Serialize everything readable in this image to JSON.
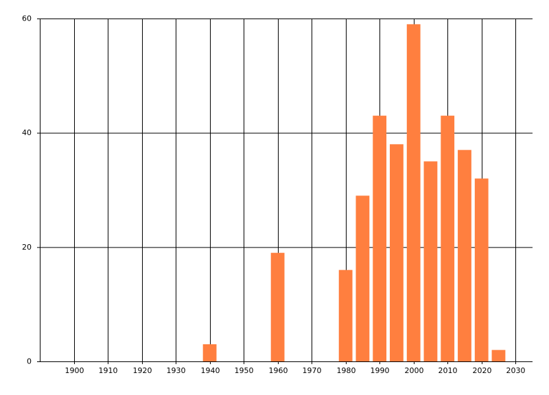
{
  "chart_data": {
    "type": "bar",
    "x": [
      1940,
      1960,
      1980,
      1985,
      1990,
      1995,
      2000,
      2005,
      2010,
      2015,
      2020,
      2025
    ],
    "values": [
      3,
      19,
      16,
      29,
      43,
      38,
      59,
      35,
      43,
      37,
      32,
      2
    ],
    "color": "#ff7f3f",
    "xlim": [
      1890,
      2035
    ],
    "xticks": [
      1900,
      1910,
      1920,
      1930,
      1940,
      1950,
      1960,
      1970,
      1980,
      1990,
      2000,
      2010,
      2020,
      2030
    ],
    "ylim": [
      0,
      60
    ],
    "yticks": [
      0,
      20,
      40,
      60
    ],
    "grid": true
  }
}
